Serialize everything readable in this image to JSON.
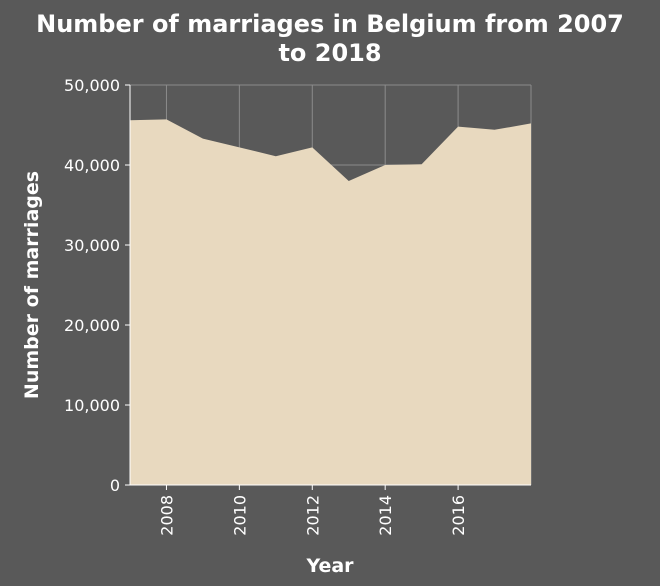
{
  "chart_data": {
    "type": "area",
    "title": "Number of marriages in Belgium from 2007 to 2018",
    "title_lines": [
      "Number of marriages in Belgium from 2007",
      "to 2018"
    ],
    "xlabel": "Year",
    "ylabel": "Number of marriages",
    "x": [
      2007,
      2008,
      2009,
      2010,
      2011,
      2012,
      2013,
      2014,
      2015,
      2016,
      2017,
      2018
    ],
    "values": [
      45600,
      45700,
      43300,
      42200,
      41100,
      42200,
      38000,
      40000,
      40100,
      44800,
      44400,
      45200
    ],
    "xlim": [
      2007,
      2018
    ],
    "ylim": [
      0,
      50000
    ],
    "x_ticks": [
      "2008",
      "2010",
      "2012",
      "2014",
      "2016"
    ],
    "y_ticks": [
      "0",
      "10,000",
      "20,000",
      "30,000",
      "40,000",
      "50,000"
    ],
    "grid": true,
    "colors": {
      "background": "#595959",
      "fill": "#e8d9bf",
      "grid": "#8c8c8c",
      "text": "#ffffff"
    }
  }
}
